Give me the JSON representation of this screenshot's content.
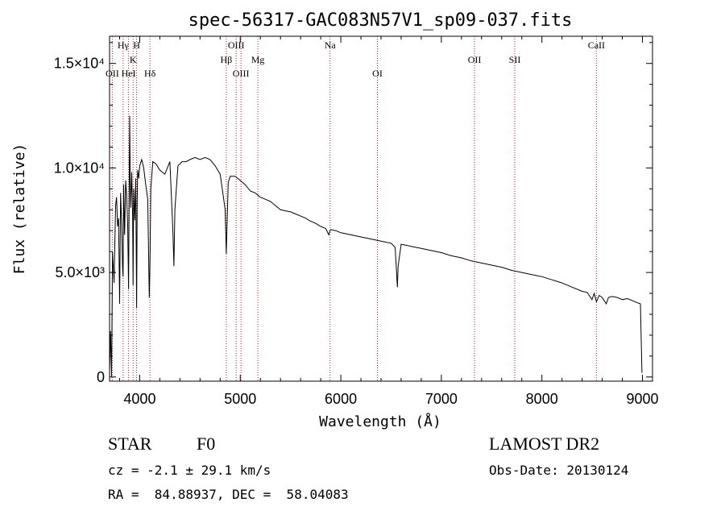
{
  "chart_data": {
    "type": "line",
    "title": "spec-56317-GAC083N57V1_sp09-037.fits",
    "xlabel": "Wavelength (Å)",
    "ylabel": "Flux (relative)",
    "xlim": [
      3700,
      9100
    ],
    "ylim": [
      -200,
      16300
    ],
    "xticks": [
      4000,
      5000,
      6000,
      7000,
      8000,
      9000
    ],
    "yticks": [
      {
        "value": 0,
        "label": "0"
      },
      {
        "value": 5000,
        "label": "5.0×10³"
      },
      {
        "value": 10000,
        "label": "1.0×10⁴"
      },
      {
        "value": 15000,
        "label": "1.5×10⁴"
      }
    ],
    "grid": false,
    "spectral_lines": [
      {
        "label": "OII",
        "wavelength": 3727,
        "row": 3
      },
      {
        "label": "Hγ",
        "wavelength": 3835,
        "row": 1
      },
      {
        "label": "HeI",
        "wavelength": 3889,
        "row": 3
      },
      {
        "label": "K",
        "wavelength": 3934,
        "row": 2
      },
      {
        "label": "H",
        "wavelength": 3969,
        "row": 1
      },
      {
        "label": "Hδ",
        "wavelength": 4102,
        "row": 3
      },
      {
        "label": "Hβ",
        "wavelength": 4861,
        "row": 2
      },
      {
        "label": "OIII",
        "wavelength": 4959,
        "row": 1
      },
      {
        "label": "OIII",
        "wavelength": 5007,
        "row": 3
      },
      {
        "label": "Mg",
        "wavelength": 5175,
        "row": 2
      },
      {
        "label": "Na",
        "wavelength": 5893,
        "row": 1
      },
      {
        "label": "OI",
        "wavelength": 6364,
        "row": 3
      },
      {
        "label": "OII",
        "wavelength": 7330,
        "row": 2
      },
      {
        "label": "SII",
        "wavelength": 7730,
        "row": 2
      },
      {
        "label": "CaII",
        "wavelength": 8542,
        "row": 1
      }
    ],
    "series": [
      {
        "x": [
          3700,
          3710,
          3720,
          3730,
          3745,
          3760,
          3770,
          3780,
          3790,
          3800,
          3810,
          3820,
          3830,
          3835,
          3840,
          3850,
          3860,
          3870,
          3880,
          3889,
          3895,
          3900,
          3905,
          3910,
          3920,
          3930,
          3934,
          3940,
          3950,
          3960,
          3969,
          3975,
          3980,
          3990,
          4000,
          4020,
          4040,
          4060,
          4080,
          4095,
          4102,
          4110,
          4130,
          4160,
          4200,
          4250,
          4300,
          4330,
          4340,
          4350,
          4380,
          4420,
          4460,
          4500,
          4550,
          4600,
          4650,
          4700,
          4750,
          4800,
          4830,
          4850,
          4861,
          4870,
          4880,
          4900,
          4950,
          5000,
          5050,
          5100,
          5150,
          5200,
          5250,
          5300,
          5350,
          5400,
          5450,
          5500,
          5550,
          5600,
          5650,
          5700,
          5750,
          5800,
          5850,
          5880,
          5893,
          5900,
          5950,
          6000,
          6100,
          6200,
          6300,
          6400,
          6500,
          6540,
          6555,
          6563,
          6570,
          6600,
          6700,
          6800,
          6900,
          7000,
          7100,
          7200,
          7300,
          7400,
          7500,
          7600,
          7700,
          7800,
          7900,
          8000,
          8100,
          8200,
          8300,
          8400,
          8450,
          8498,
          8520,
          8542,
          8570,
          8600,
          8640,
          8662,
          8700,
          8750,
          8800,
          8850,
          8900,
          8950,
          8980,
          8995
        ],
        "y": [
          300,
          2200,
          0,
          6000,
          4500,
          8200,
          8600,
          7200,
          7600,
          3500,
          8800,
          7300,
          5200,
          4800,
          9200,
          6800,
          9400,
          8700,
          7300,
          4200,
          8500,
          12500,
          9600,
          8100,
          9800,
          7500,
          4400,
          9000,
          7500,
          9500,
          3300,
          8300,
          9900,
          9500,
          10100,
          10400,
          10000,
          9200,
          8500,
          3800,
          5500,
          9000,
          10300,
          10200,
          9900,
          9700,
          10300,
          7000,
          5300,
          8000,
          10100,
          10300,
          10300,
          10400,
          10500,
          10400,
          10500,
          10400,
          10100,
          9700,
          8700,
          8000,
          5900,
          7500,
          9300,
          9600,
          9600,
          9400,
          9200,
          8900,
          8800,
          8600,
          8500,
          8400,
          8200,
          8000,
          7950,
          7900,
          7800,
          7700,
          7600,
          7450,
          7350,
          7200,
          7100,
          6800,
          7000,
          7050,
          7000,
          6900,
          6800,
          6700,
          6600,
          6500,
          6400,
          6200,
          5000,
          4300,
          5300,
          6350,
          6250,
          6150,
          6050,
          5950,
          5800,
          5700,
          5550,
          5450,
          5350,
          5250,
          5100,
          5000,
          4900,
          4800,
          4650,
          4500,
          4300,
          4100,
          4050,
          3700,
          4000,
          3600,
          3900,
          3800,
          3500,
          3800,
          3850,
          3800,
          3700,
          3750,
          3650,
          3550,
          3500,
          200
        ]
      }
    ]
  },
  "info": {
    "object_type": "STAR",
    "subclass": "F0",
    "survey": "LAMOST DR2",
    "redshift": "cz = -2.1 ± 29.1 km/s",
    "obs_date": "Obs-Date: 20130124",
    "coords": "RA =  84.88937, DEC =  58.04083"
  }
}
